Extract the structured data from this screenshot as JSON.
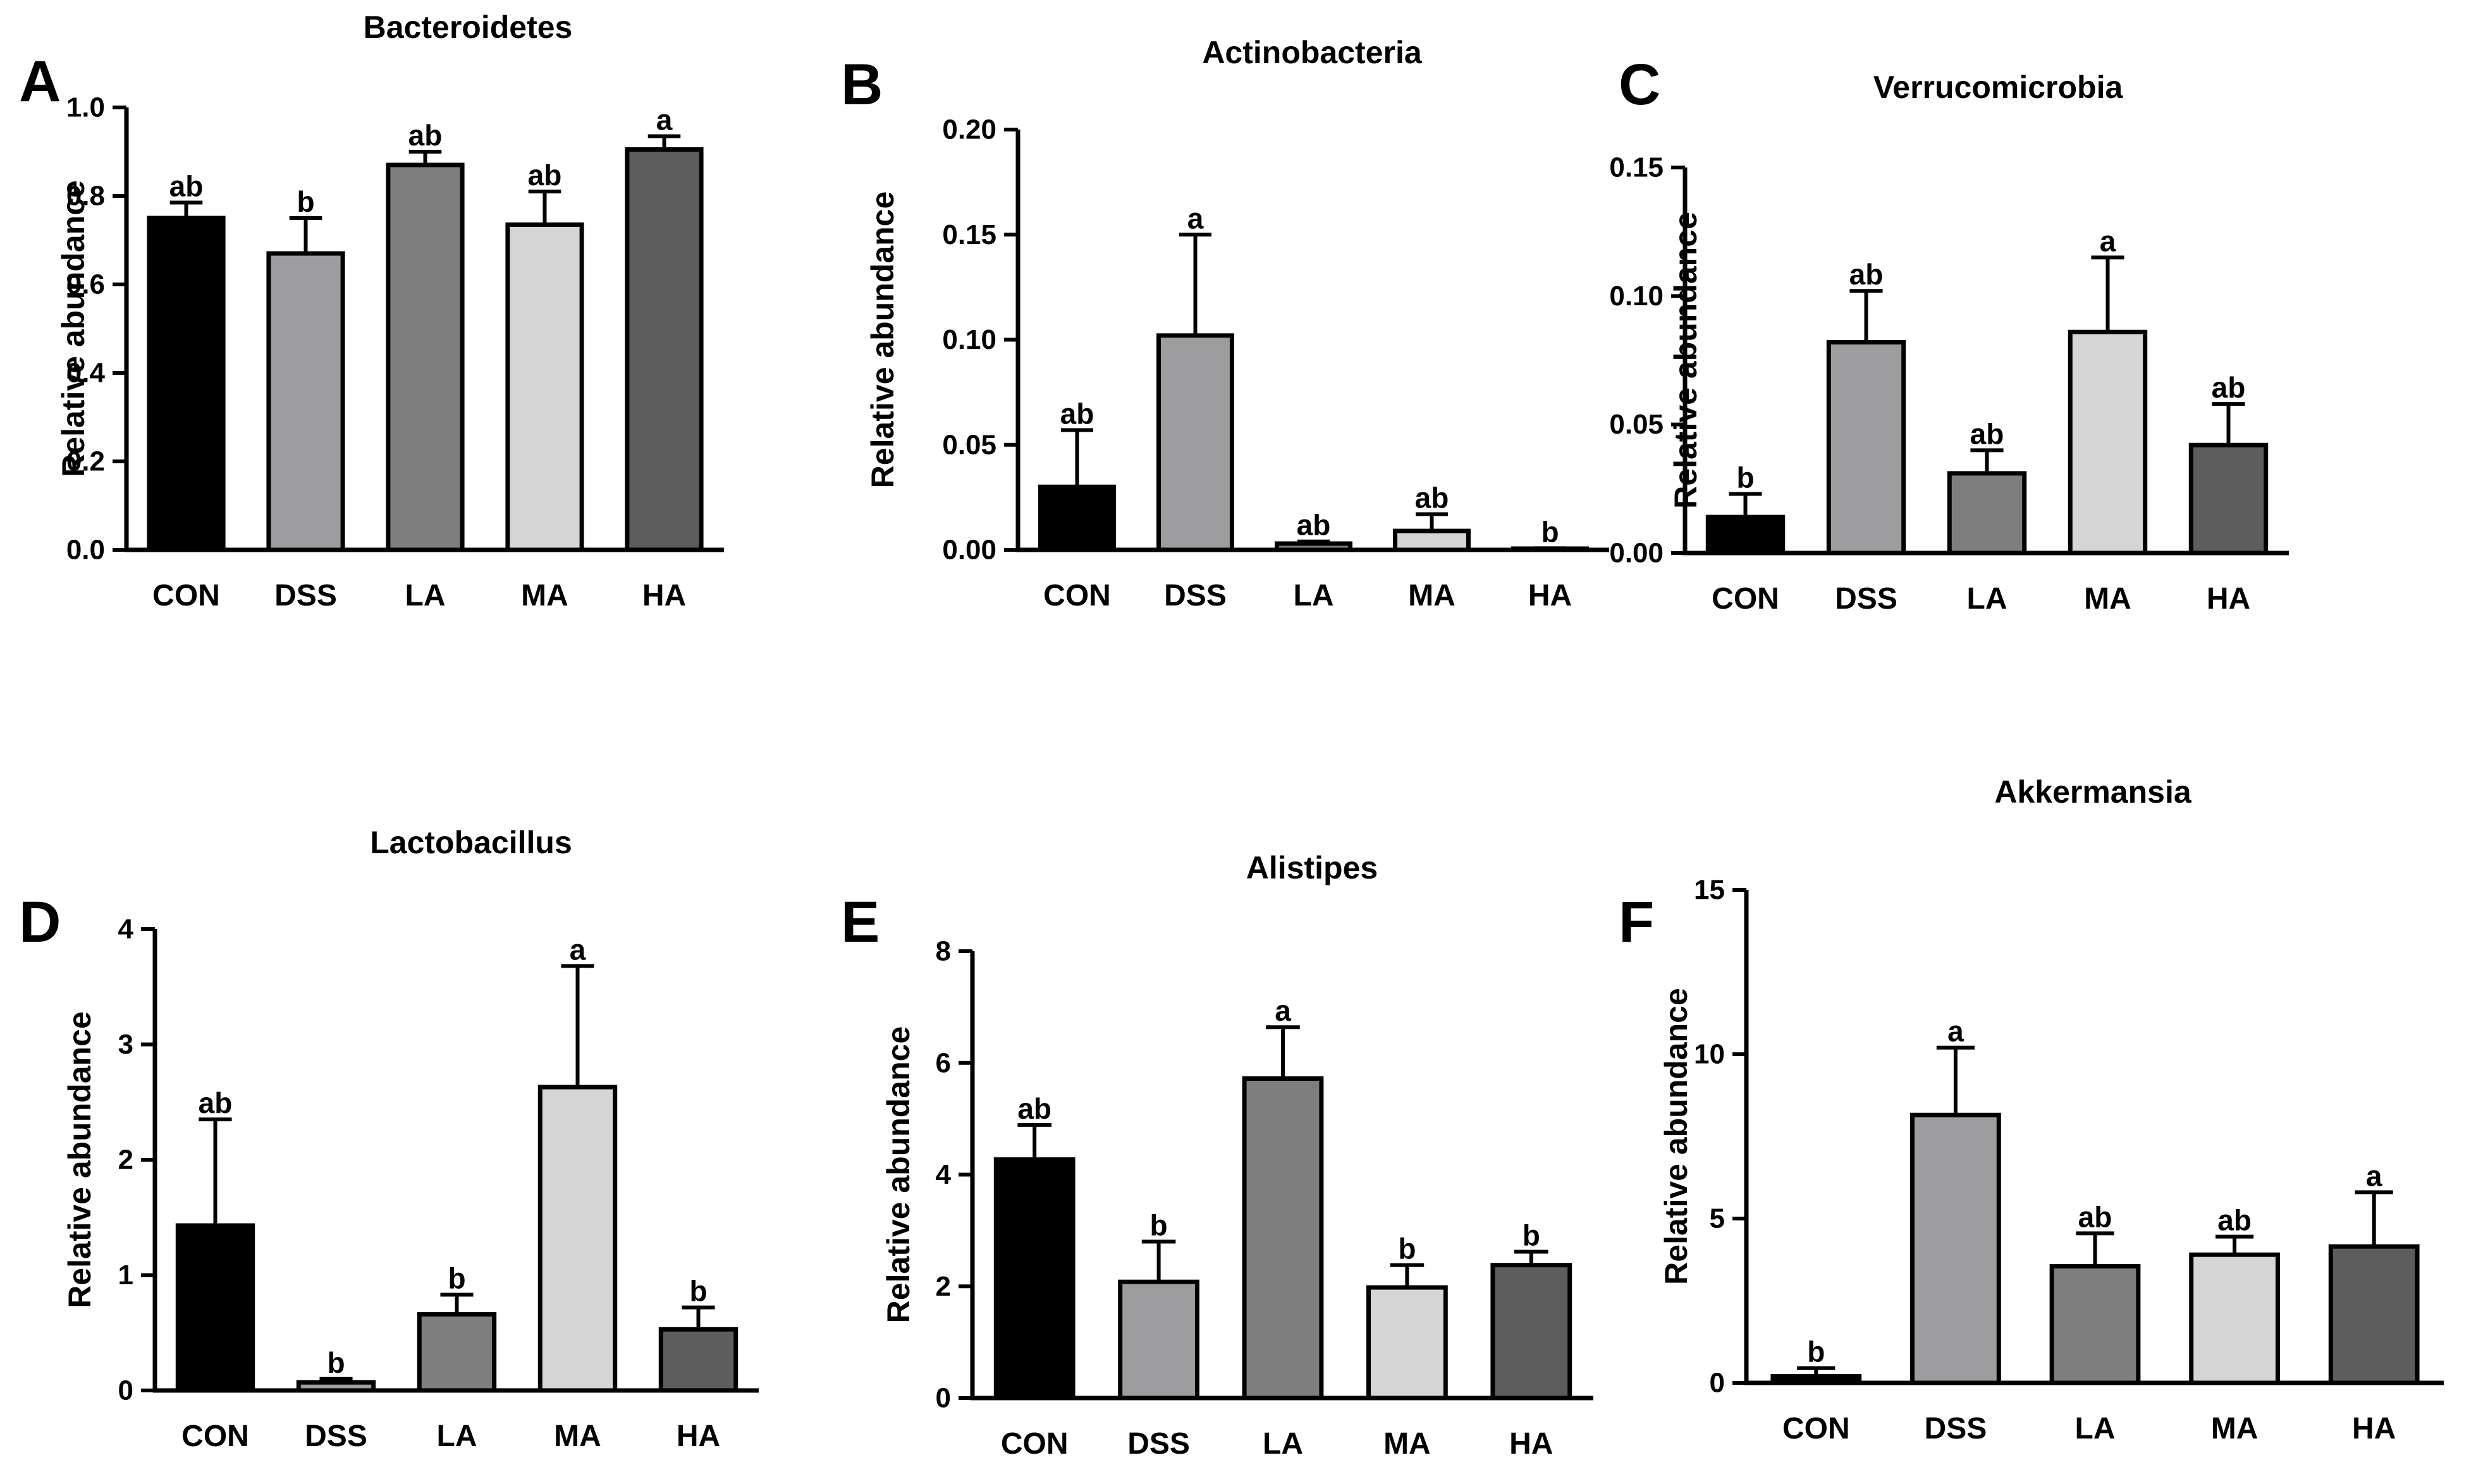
{
  "palette": [
    "#000000",
    "#9d9d9f",
    "#7e7e7e",
    "#d5d5d5",
    "#5d5d5d"
  ],
  "chart_data": [
    {
      "panel": "A",
      "type": "bar",
      "title": "Bacteroidetes",
      "ylabel": "Relative abundance",
      "xlabel": "",
      "categories": [
        "CON",
        "DSS",
        "LA",
        "MA",
        "HA"
      ],
      "values": [
        0.75,
        0.67,
        0.87,
        0.735,
        0.905
      ],
      "errors": [
        0.035,
        0.08,
        0.03,
        0.075,
        0.03
      ],
      "significance": [
        "ab",
        "b",
        "ab",
        "ab",
        "a"
      ],
      "ylim": [
        0,
        1.0
      ],
      "yticks": [
        0,
        0.2,
        0.4,
        0.6,
        0.8,
        1.0
      ],
      "ytick_labels": [
        "0.0",
        "0.2",
        "0.4",
        "0.6",
        "0.8",
        "1.0"
      ],
      "grid": false
    },
    {
      "panel": "B",
      "type": "bar",
      "title": "Actinobacteria",
      "ylabel": "Relative abundance",
      "xlabel": "",
      "categories": [
        "CON",
        "DSS",
        "LA",
        "MA",
        "HA"
      ],
      "values": [
        0.03,
        0.102,
        0.003,
        0.009,
        0.0005
      ],
      "errors": [
        0.027,
        0.048,
        0.001,
        0.008,
        0.0003
      ],
      "significance": [
        "ab",
        "a",
        "ab",
        "ab",
        "b"
      ],
      "ylim": [
        0,
        0.2
      ],
      "yticks": [
        0,
        0.05,
        0.1,
        0.15,
        0.2
      ],
      "ytick_labels": [
        "0.00",
        "0.05",
        "0.10",
        "0.15",
        "0.20"
      ],
      "grid": false
    },
    {
      "panel": "C",
      "type": "bar",
      "title": "Verrucomicrobia",
      "ylabel": "Relative abundance",
      "xlabel": "",
      "categories": [
        "CON",
        "DSS",
        "LA",
        "MA",
        "HA"
      ],
      "values": [
        0.014,
        0.082,
        0.031,
        0.086,
        0.042
      ],
      "errors": [
        0.009,
        0.02,
        0.009,
        0.029,
        0.016
      ],
      "significance": [
        "b",
        "ab",
        "ab",
        "a",
        "ab"
      ],
      "ylim": [
        0,
        0.15
      ],
      "yticks": [
        0,
        0.05,
        0.1,
        0.15
      ],
      "ytick_labels": [
        "0.00",
        "0.05",
        "0.10",
        "0.15"
      ],
      "grid": false
    },
    {
      "panel": "D",
      "type": "bar",
      "title": "Lactobacillus",
      "ylabel": "Relative abundance",
      "xlabel": "",
      "categories": [
        "CON",
        "DSS",
        "LA",
        "MA",
        "HA"
      ],
      "values": [
        1.43,
        0.07,
        0.66,
        2.63,
        0.53
      ],
      "errors": [
        0.92,
        0.03,
        0.17,
        1.05,
        0.19
      ],
      "significance": [
        "ab",
        "b",
        "b",
        "a",
        "b"
      ],
      "ylim": [
        0,
        4
      ],
      "yticks": [
        0,
        1,
        2,
        3,
        4
      ],
      "ytick_labels": [
        "0",
        "1",
        "2",
        "3",
        "4"
      ],
      "grid": false
    },
    {
      "panel": "E",
      "type": "bar",
      "title": "Alistipes",
      "ylabel": "Relative abundance",
      "xlabel": "",
      "categories": [
        "CON",
        "DSS",
        "LA",
        "MA",
        "HA"
      ],
      "values": [
        4.27,
        2.08,
        5.72,
        1.98,
        2.38
      ],
      "errors": [
        0.62,
        0.72,
        0.92,
        0.4,
        0.24
      ],
      "significance": [
        "ab",
        "b",
        "a",
        "b",
        "b"
      ],
      "ylim": [
        0,
        8
      ],
      "yticks": [
        0,
        2,
        4,
        6,
        8
      ],
      "ytick_labels": [
        "0",
        "2",
        "4",
        "6",
        "8"
      ],
      "grid": false
    },
    {
      "panel": "F",
      "type": "bar",
      "title": "Akkermansia",
      "ylabel": "Relative abundance",
      "xlabel": "",
      "categories": [
        "CON",
        "DSS",
        "LA",
        "MA",
        "HA"
      ],
      "values": [
        0.2,
        8.15,
        3.55,
        3.9,
        4.15
      ],
      "errors": [
        0.25,
        2.05,
        1.0,
        0.55,
        1.65
      ],
      "significance": [
        "b",
        "a",
        "ab",
        "ab",
        "a"
      ],
      "ylim": [
        0,
        15
      ],
      "yticks": [
        0,
        5,
        10,
        15
      ],
      "ytick_labels": [
        "0",
        "5",
        "10",
        "15"
      ],
      "grid": false
    }
  ]
}
